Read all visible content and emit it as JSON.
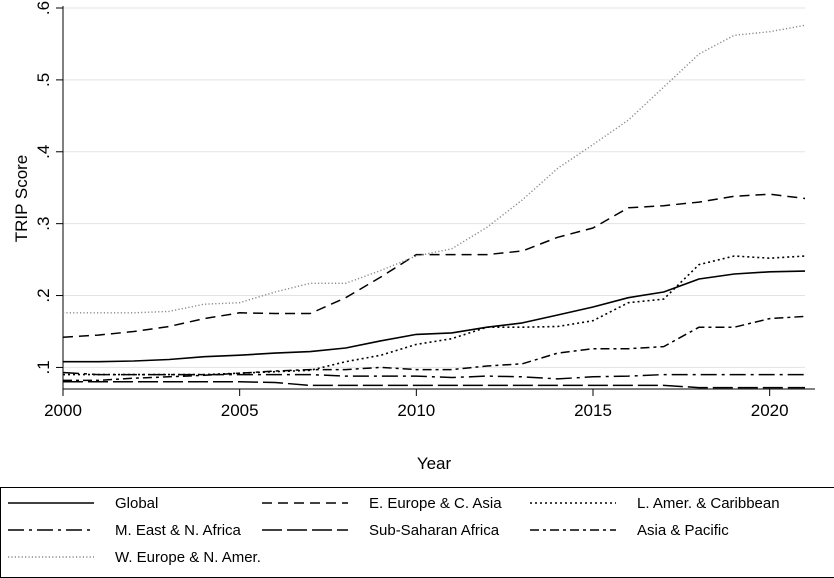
{
  "chart_data": {
    "type": "line",
    "xlabel": "Year",
    "ylabel": "TRIP Score",
    "xlim": [
      2000,
      2021
    ],
    "ylim": [
      0.07,
      0.6
    ],
    "xticks": [
      "2000",
      "2005",
      "2010",
      "2015",
      "2020"
    ],
    "yticks": [
      ".1",
      ".2",
      ".3",
      ".4",
      ".5",
      ".6"
    ],
    "grid": true,
    "legend_position": "bottom",
    "x": [
      2000,
      2001,
      2002,
      2003,
      2004,
      2005,
      2006,
      2007,
      2008,
      2009,
      2010,
      2011,
      2012,
      2013,
      2014,
      2015,
      2016,
      2017,
      2018,
      2019,
      2020,
      2021
    ],
    "series": [
      {
        "name": "Global",
        "dash": "solid",
        "color": "#000000",
        "values": [
          0.108,
          0.108,
          0.109,
          0.111,
          0.115,
          0.117,
          0.12,
          0.122,
          0.127,
          0.137,
          0.146,
          0.148,
          0.156,
          0.162,
          0.173,
          0.184,
          0.197,
          0.205,
          0.223,
          0.23,
          0.233,
          0.234
        ]
      },
      {
        "name": "E. Europe & C. Asia",
        "dash": "dashed",
        "color": "#000000",
        "values": [
          0.142,
          0.145,
          0.15,
          0.157,
          0.168,
          0.176,
          0.175,
          0.175,
          0.197,
          0.226,
          0.257,
          0.257,
          0.257,
          0.262,
          0.281,
          0.294,
          0.322,
          0.325,
          0.33,
          0.338,
          0.341,
          0.335
        ]
      },
      {
        "name": "L. Amer. & Caribbean",
        "dash": "dotted",
        "color": "#000000",
        "values": [
          0.09,
          0.09,
          0.09,
          0.09,
          0.09,
          0.092,
          0.094,
          0.096,
          0.108,
          0.117,
          0.132,
          0.14,
          0.156,
          0.156,
          0.157,
          0.165,
          0.19,
          0.195,
          0.243,
          0.255,
          0.252,
          0.255
        ]
      },
      {
        "name": "M. East & N. Africa",
        "dash": "longdash-dot",
        "color": "#000000",
        "values": [
          0.093,
          0.09,
          0.09,
          0.09,
          0.09,
          0.09,
          0.09,
          0.09,
          0.088,
          0.088,
          0.088,
          0.086,
          0.088,
          0.087,
          0.084,
          0.087,
          0.088,
          0.09,
          0.09,
          0.09,
          0.09,
          0.09
        ]
      },
      {
        "name": "Sub-Saharan Africa",
        "dash": "longdash",
        "color": "#000000",
        "values": [
          0.08,
          0.08,
          0.08,
          0.08,
          0.08,
          0.08,
          0.079,
          0.075,
          0.075,
          0.075,
          0.075,
          0.075,
          0.075,
          0.075,
          0.075,
          0.075,
          0.075,
          0.075,
          0.072,
          0.072,
          0.072,
          0.072
        ]
      },
      {
        "name": "Asia & Pacific",
        "dash": "dash-dot",
        "color": "#000000",
        "values": [
          0.082,
          0.082,
          0.085,
          0.087,
          0.089,
          0.092,
          0.095,
          0.097,
          0.097,
          0.1,
          0.097,
          0.097,
          0.102,
          0.105,
          0.12,
          0.126,
          0.126,
          0.129,
          0.156,
          0.156,
          0.168,
          0.171
        ]
      },
      {
        "name": "W. Europe & N. Amer.",
        "dash": "fine-dotted",
        "color": "#888888",
        "values": [
          0.176,
          0.176,
          0.176,
          0.178,
          0.188,
          0.19,
          0.205,
          0.217,
          0.217,
          0.235,
          0.255,
          0.265,
          0.295,
          0.333,
          0.377,
          0.41,
          0.444,
          0.49,
          0.536,
          0.562,
          0.567,
          0.576
        ]
      }
    ]
  }
}
